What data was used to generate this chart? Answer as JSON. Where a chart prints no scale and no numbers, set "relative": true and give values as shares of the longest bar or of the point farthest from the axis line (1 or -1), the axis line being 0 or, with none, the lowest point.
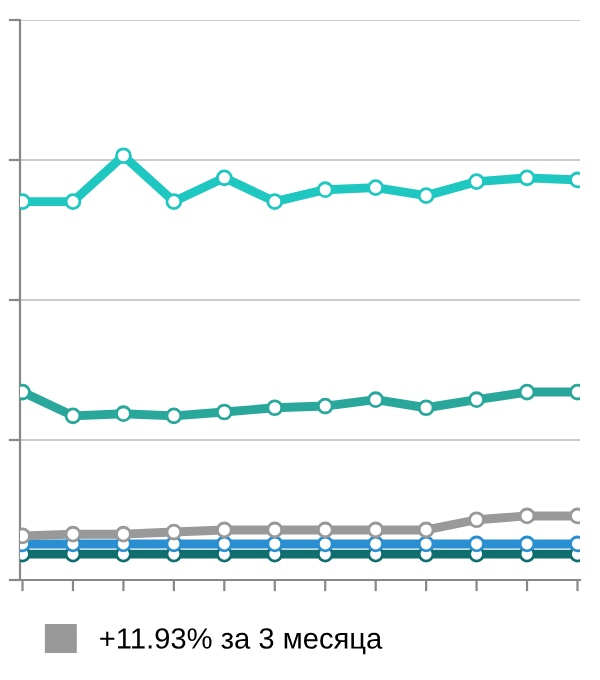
{
  "chart_data": {
    "type": "line",
    "relative": true,
    "categories": [
      null,
      null,
      null,
      null,
      null,
      null,
      null,
      null,
      null,
      null,
      null,
      null
    ],
    "series": [
      {
        "color": "#1fc7c1",
        "values": [
          0.892,
          0.892,
          1,
          0.892,
          0.948,
          0.892,
          0.92,
          0.925,
          0.906,
          0.939,
          0.948,
          0.943
        ]
      },
      {
        "color": "#2aa79b",
        "values": [
          0.443,
          0.387,
          0.392,
          0.387,
          0.396,
          0.406,
          0.41,
          0.425,
          0.406,
          0.425,
          0.443,
          0.443
        ]
      },
      {
        "name": "+11.93% за 3 месяца",
        "color": "#999999",
        "values": [
          0.104,
          0.108,
          0.108,
          0.113,
          0.118,
          0.118,
          0.118,
          0.118,
          0.118,
          0.142,
          0.151,
          0.151
        ]
      },
      {
        "color": "#2a8fd0",
        "values": [
          0.085,
          0.085,
          0.085,
          0.085,
          0.085,
          0.085,
          0.085,
          0.085,
          0.085,
          0.085,
          0.085,
          0.085
        ]
      },
      {
        "color": "#0f6e6e",
        "values": [
          0.061,
          0.061,
          0.061,
          0.061,
          0.061,
          0.061,
          0.061,
          0.061,
          0.061,
          0.061,
          0.061,
          0.061
        ]
      }
    ],
    "ref_lines": [
      {
        "axis": "y",
        "value": 0.33,
        "color": "#cccccc"
      },
      {
        "axis": "y",
        "value": 0.66,
        "color": "#cccccc"
      },
      {
        "axis": "y",
        "value": 0.99,
        "color": "#cccccc"
      },
      {
        "axis": "y",
        "value": 1.32,
        "color": "#cccccc"
      }
    ],
    "legend": "bottom",
    "marker": "circle",
    "line_style": "solid"
  }
}
